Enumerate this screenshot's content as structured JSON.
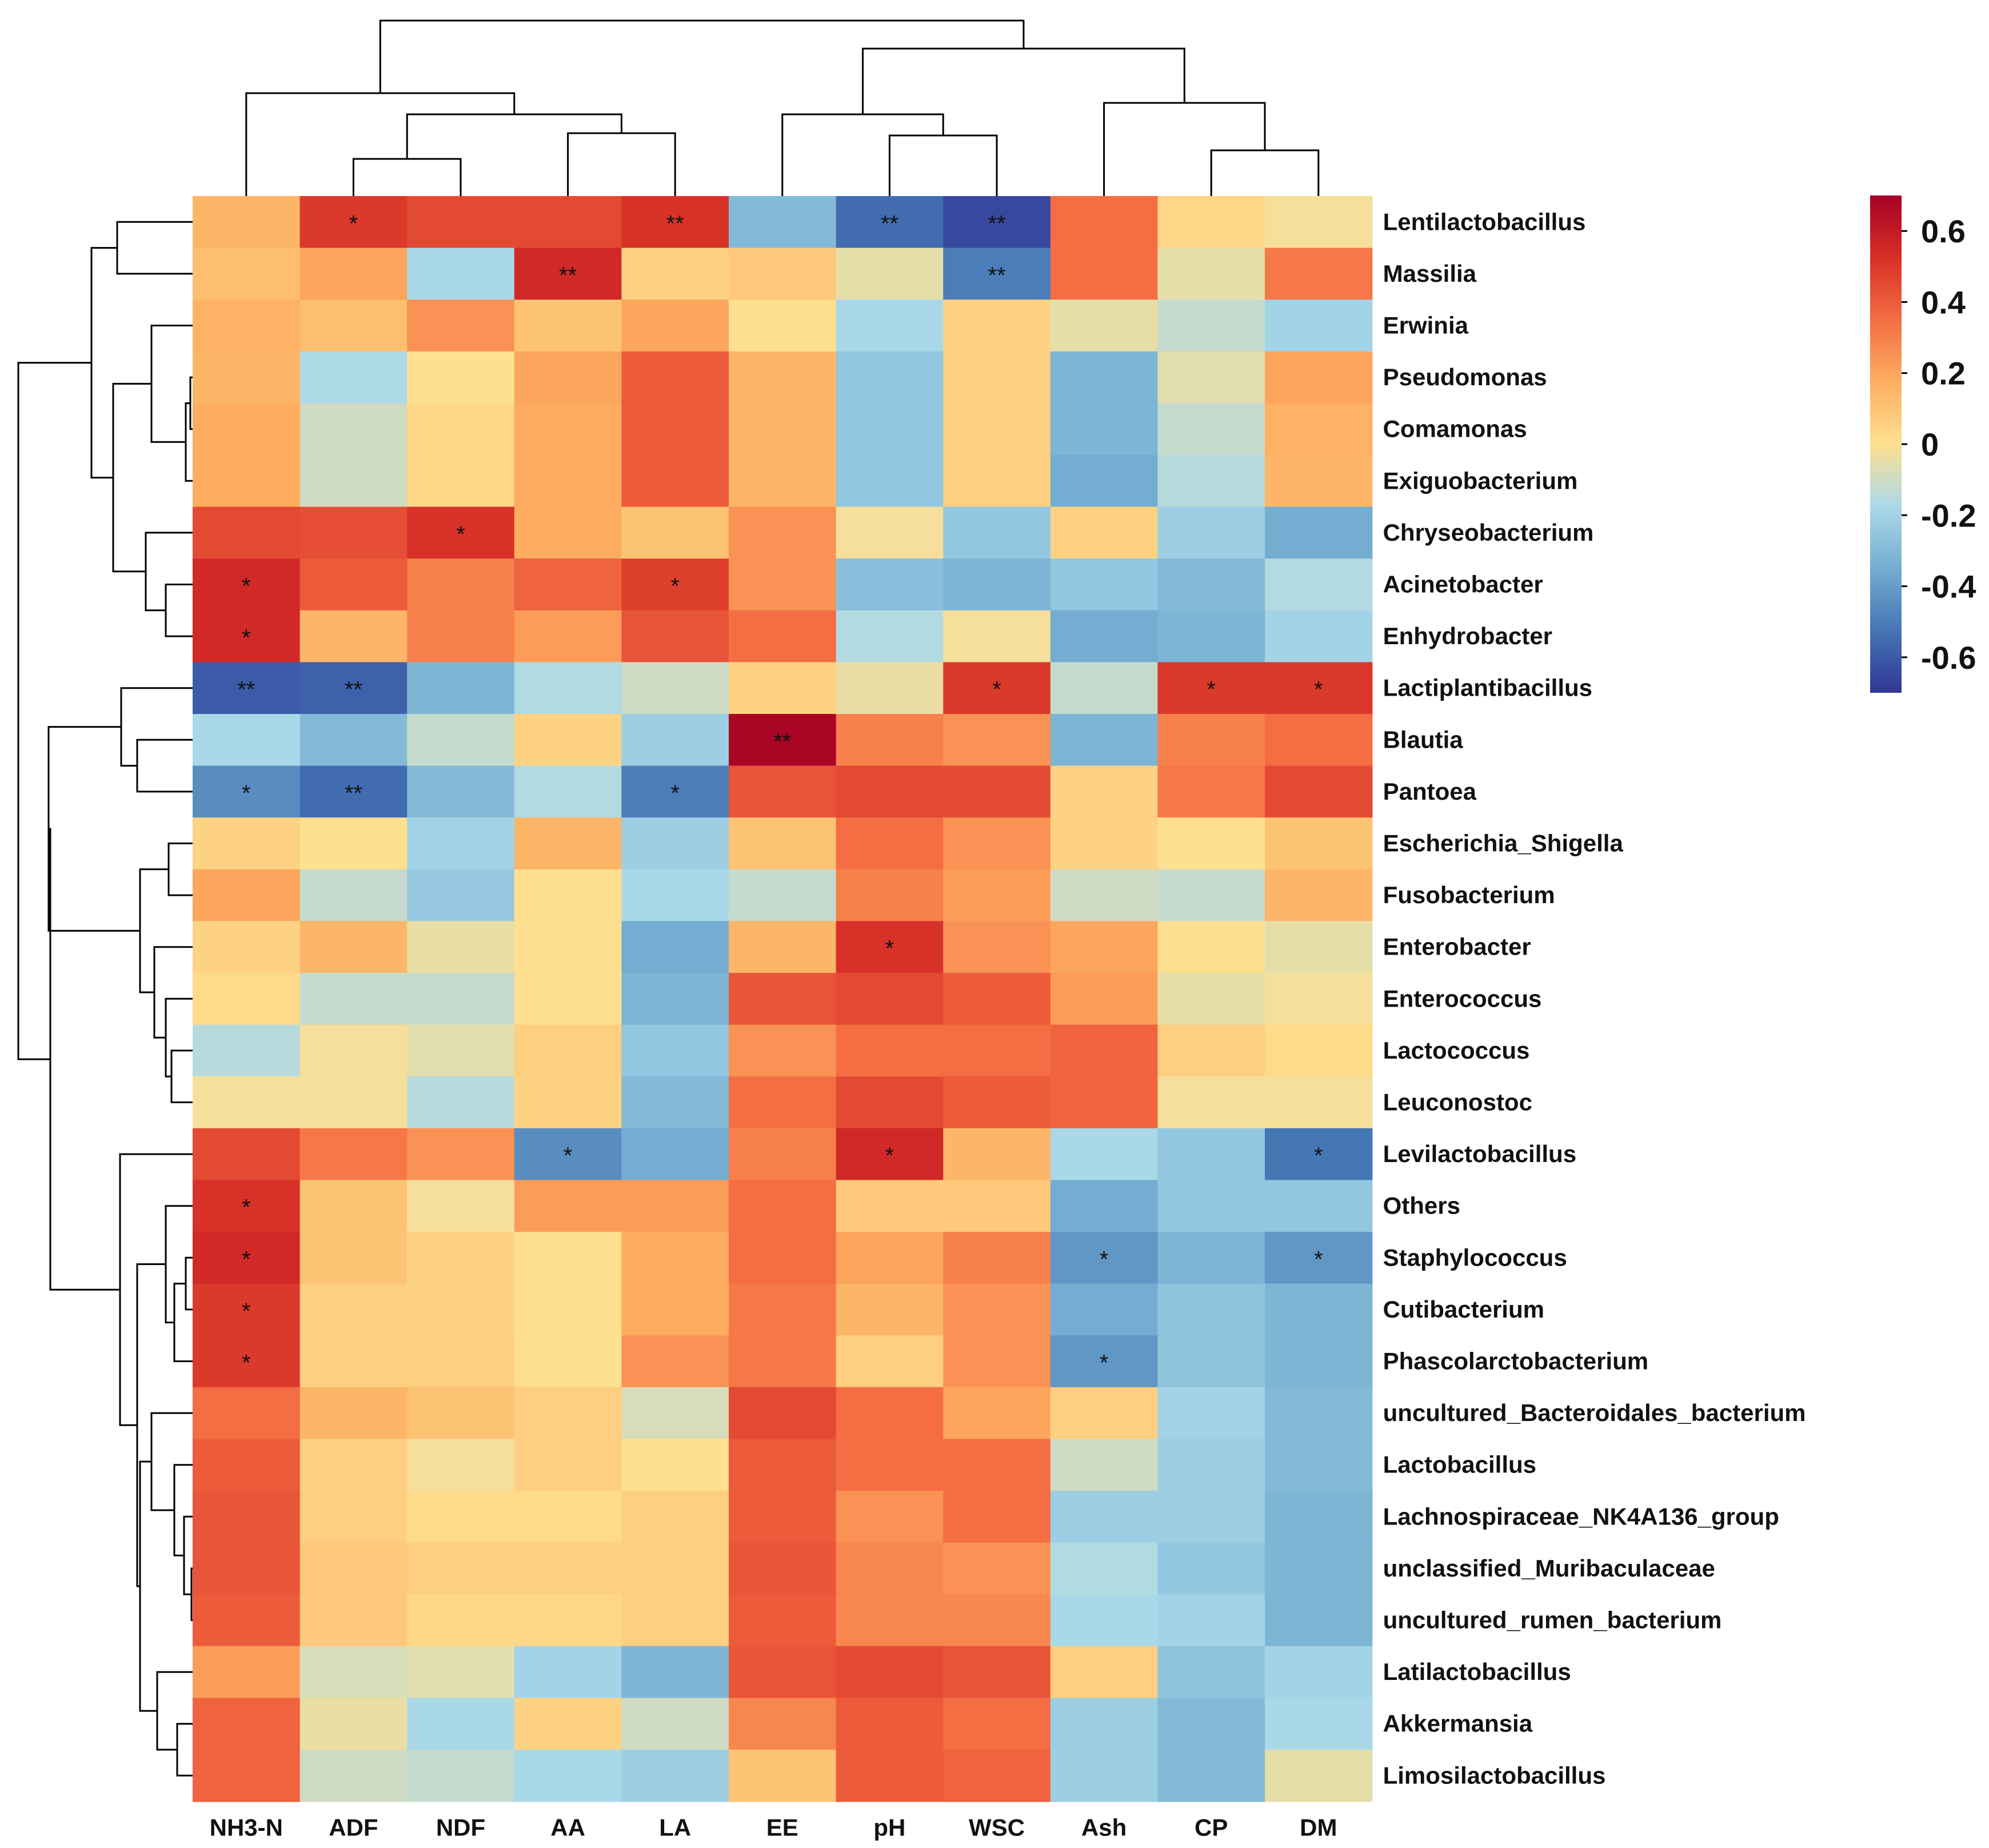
{
  "chart_data": {
    "type": "heatmap",
    "title": "",
    "columns": [
      "NH3-N",
      "ADF",
      "NDF",
      "AA",
      "LA",
      "EE",
      "pH",
      "WSC",
      "Ash",
      "CP",
      "DM"
    ],
    "rows": [
      "Lentilactobacillus",
      "Massilia",
      "Erwinia",
      "Pseudomonas",
      "Comamonas",
      "Exiguobacterium",
      "Chryseobacterium",
      "Acinetobacter",
      "Enhydrobacter",
      "Lactiplantibacillus",
      "Blautia",
      "Pantoea",
      "Escherichia_Shigella",
      "Fusobacterium",
      "Enterobacter",
      "Enterococcus",
      "Lactococcus",
      "Leuconostoc",
      "Levilactobacillus",
      "Others",
      "Staphylococcus",
      "Cutibacterium",
      "Phascolarctobacterium",
      "uncultured_Bacteroidales_bacterium",
      "Lactobacillus",
      "Lachnospiraceae_NK4A136_group",
      "unclassified_Muribaculaceae",
      "uncultured_rumen_bacterium",
      "Latilactobacillus",
      "Akkermansia",
      "Limosilactobacillus"
    ],
    "values": [
      [
        0.15,
        0.5,
        0.45,
        0.45,
        0.52,
        -0.3,
        -0.55,
        -0.65,
        0.35,
        0.03,
        -0.02
      ],
      [
        0.12,
        0.2,
        -0.18,
        0.55,
        0.05,
        0.08,
        -0.05,
        -0.5,
        0.35,
        -0.05,
        0.32
      ],
      [
        0.16,
        0.12,
        0.25,
        0.1,
        0.2,
        0.0,
        -0.18,
        0.05,
        -0.05,
        -0.12,
        -0.2
      ],
      [
        0.15,
        -0.17,
        0.0,
        0.2,
        0.4,
        0.15,
        -0.25,
        0.06,
        -0.32,
        -0.06,
        0.2
      ],
      [
        0.18,
        -0.1,
        0.03,
        0.18,
        0.4,
        0.15,
        -0.25,
        0.06,
        -0.32,
        -0.12,
        0.16
      ],
      [
        0.18,
        -0.1,
        0.03,
        0.18,
        0.4,
        0.15,
        -0.25,
        0.06,
        -0.35,
        -0.15,
        0.15
      ],
      [
        0.45,
        0.44,
        0.52,
        0.18,
        0.1,
        0.25,
        -0.02,
        -0.25,
        0.05,
        -0.22,
        -0.35
      ],
      [
        0.55,
        0.4,
        0.3,
        0.38,
        0.48,
        0.25,
        -0.28,
        -0.32,
        -0.25,
        -0.3,
        -0.16
      ],
      [
        0.55,
        0.15,
        0.3,
        0.22,
        0.42,
        0.35,
        -0.16,
        -0.02,
        -0.35,
        -0.32,
        -0.2
      ],
      [
        -0.6,
        -0.58,
        -0.32,
        -0.16,
        -0.1,
        0.05,
        -0.04,
        0.5,
        -0.12,
        0.5,
        0.5
      ],
      [
        -0.18,
        -0.3,
        -0.12,
        0.05,
        -0.22,
        0.68,
        0.3,
        0.25,
        -0.32,
        0.3,
        0.35
      ],
      [
        -0.45,
        -0.55,
        -0.3,
        -0.16,
        -0.5,
        0.42,
        0.45,
        0.45,
        0.05,
        0.32,
        0.45
      ],
      [
        0.05,
        0.0,
        -0.2,
        0.15,
        -0.22,
        0.1,
        0.35,
        0.25,
        0.05,
        0.0,
        0.1
      ],
      [
        0.2,
        -0.12,
        -0.24,
        0.0,
        -0.18,
        -0.12,
        0.3,
        0.22,
        -0.1,
        -0.12,
        0.15
      ],
      [
        0.05,
        0.15,
        -0.04,
        0.0,
        -0.35,
        0.15,
        0.52,
        0.25,
        0.2,
        0.0,
        -0.05
      ],
      [
        0.02,
        -0.12,
        -0.12,
        0.0,
        -0.32,
        0.42,
        0.45,
        0.4,
        0.22,
        -0.05,
        -0.02
      ],
      [
        -0.15,
        -0.02,
        -0.06,
        0.06,
        -0.25,
        0.25,
        0.35,
        0.35,
        0.38,
        0.06,
        0.02
      ],
      [
        -0.02,
        -0.02,
        -0.15,
        0.05,
        -0.3,
        0.35,
        0.45,
        0.4,
        0.38,
        -0.02,
        -0.02
      ],
      [
        0.45,
        0.32,
        0.25,
        -0.45,
        -0.35,
        0.3,
        0.55,
        0.15,
        -0.18,
        -0.25,
        -0.52
      ],
      [
        0.52,
        0.1,
        -0.02,
        0.22,
        0.22,
        0.35,
        0.08,
        0.08,
        -0.35,
        -0.25,
        -0.25
      ],
      [
        0.55,
        0.1,
        0.05,
        0.0,
        0.18,
        0.35,
        0.2,
        0.3,
        -0.42,
        -0.32,
        -0.42
      ],
      [
        0.5,
        0.06,
        0.05,
        0.0,
        0.18,
        0.32,
        0.15,
        0.25,
        -0.35,
        -0.26,
        -0.32
      ],
      [
        0.5,
        0.06,
        0.06,
        0.0,
        0.25,
        0.32,
        0.06,
        0.25,
        -0.42,
        -0.26,
        -0.32
      ],
      [
        0.35,
        0.15,
        0.1,
        0.06,
        -0.08,
        0.45,
        0.35,
        0.2,
        0.06,
        -0.2,
        -0.3
      ],
      [
        0.4,
        0.06,
        -0.02,
        0.06,
        0.0,
        0.4,
        0.35,
        0.35,
        -0.1,
        -0.22,
        -0.3
      ],
      [
        0.42,
        0.06,
        0.02,
        0.02,
        0.06,
        0.4,
        0.25,
        0.35,
        -0.22,
        -0.22,
        -0.32
      ],
      [
        0.42,
        0.08,
        0.06,
        0.06,
        0.06,
        0.42,
        0.28,
        0.25,
        -0.16,
        -0.25,
        -0.32
      ],
      [
        0.4,
        0.08,
        0.03,
        0.03,
        0.06,
        0.4,
        0.28,
        0.28,
        -0.18,
        -0.2,
        -0.32
      ],
      [
        0.22,
        -0.08,
        -0.06,
        -0.2,
        -0.32,
        0.42,
        0.45,
        0.42,
        0.06,
        -0.26,
        -0.2
      ],
      [
        0.38,
        -0.04,
        -0.18,
        0.05,
        -0.1,
        0.28,
        0.4,
        0.35,
        -0.22,
        -0.3,
        -0.18
      ],
      [
        0.38,
        -0.1,
        -0.12,
        -0.18,
        -0.22,
        0.1,
        0.4,
        0.38,
        -0.22,
        -0.3,
        -0.05
      ]
    ],
    "significance": [
      [
        "",
        "*",
        "",
        "",
        "**",
        "",
        "**",
        "**",
        "",
        "",
        ""
      ],
      [
        "",
        "",
        "",
        "**",
        "",
        "",
        "",
        "**",
        "",
        "",
        ""
      ],
      [
        "",
        "",
        "",
        "",
        "",
        "",
        "",
        "",
        "",
        "",
        ""
      ],
      [
        "",
        "",
        "",
        "",
        "",
        "",
        "",
        "",
        "",
        "",
        ""
      ],
      [
        "",
        "",
        "",
        "",
        "",
        "",
        "",
        "",
        "",
        "",
        ""
      ],
      [
        "",
        "",
        "",
        "",
        "",
        "",
        "",
        "",
        "",
        "",
        ""
      ],
      [
        "",
        "",
        "*",
        "",
        "",
        "",
        "",
        "",
        "",
        "",
        ""
      ],
      [
        "*",
        "",
        "",
        "",
        "*",
        "",
        "",
        "",
        "",
        "",
        ""
      ],
      [
        "*",
        "",
        "",
        "",
        "",
        "",
        "",
        "",
        "",
        "",
        ""
      ],
      [
        "**",
        "**",
        "",
        "",
        "",
        "",
        "",
        "*",
        "",
        "*",
        "*"
      ],
      [
        "",
        "",
        "",
        "",
        "",
        "**",
        "",
        "",
        "",
        "",
        ""
      ],
      [
        "*",
        "**",
        "",
        "",
        "*",
        "",
        "",
        "",
        "",
        "",
        ""
      ],
      [
        "",
        "",
        "",
        "",
        "",
        "",
        "",
        "",
        "",
        "",
        ""
      ],
      [
        "",
        "",
        "",
        "",
        "",
        "",
        "",
        "",
        "",
        "",
        ""
      ],
      [
        "",
        "",
        "",
        "",
        "",
        "",
        "*",
        "",
        "",
        "",
        ""
      ],
      [
        "",
        "",
        "",
        "",
        "",
        "",
        "",
        "",
        "",
        "",
        ""
      ],
      [
        "",
        "",
        "",
        "",
        "",
        "",
        "",
        "",
        "",
        "",
        ""
      ],
      [
        "",
        "",
        "",
        "",
        "",
        "",
        "",
        "",
        "",
        "",
        ""
      ],
      [
        "",
        "",
        "",
        "*",
        "",
        "",
        "*",
        "",
        "",
        "",
        "*"
      ],
      [
        "*",
        "",
        "",
        "",
        "",
        "",
        "",
        "",
        "",
        "",
        ""
      ],
      [
        "*",
        "",
        "",
        "",
        "",
        "",
        "",
        "",
        "*",
        "",
        "*"
      ],
      [
        "*",
        "",
        "",
        "",
        "",
        "",
        "",
        "",
        "",
        "",
        ""
      ],
      [
        "*",
        "",
        "",
        "",
        "",
        "",
        "",
        "",
        "*",
        "",
        ""
      ],
      [
        "",
        "",
        "",
        "",
        "",
        "",
        "",
        "",
        "",
        "",
        ""
      ],
      [
        "",
        "",
        "",
        "",
        "",
        "",
        "",
        "",
        "",
        "",
        ""
      ],
      [
        "",
        "",
        "",
        "",
        "",
        "",
        "",
        "",
        "",
        "",
        ""
      ],
      [
        "",
        "",
        "",
        "",
        "",
        "",
        "",
        "",
        "",
        "",
        ""
      ],
      [
        "",
        "",
        "",
        "",
        "",
        "",
        "",
        "",
        "",
        "",
        ""
      ],
      [
        "",
        "",
        "",
        "",
        "",
        "",
        "",
        "",
        "",
        "",
        ""
      ],
      [
        "",
        "",
        "",
        "",
        "",
        "",
        "",
        "",
        "",
        "",
        ""
      ],
      [
        "",
        "",
        "",
        "",
        "",
        "",
        "",
        "",
        "",
        "",
        ""
      ]
    ],
    "colorbar": {
      "range": [
        -0.7,
        0.7
      ],
      "ticks": [
        0.6,
        0.4,
        0.2,
        0,
        -0.2,
        -0.4,
        -0.6
      ],
      "tick_labels": [
        "0.6",
        "0.4",
        "0.2",
        "0",
        "-0.2",
        "-0.4",
        "-0.6"
      ],
      "colors": [
        "#313695",
        "#4575b4",
        "#74add1",
        "#abd9e9",
        "#fee090",
        "#fdae61",
        "#f46d43",
        "#d73027",
        "#a50026"
      ]
    },
    "legend_position": "top-right"
  }
}
